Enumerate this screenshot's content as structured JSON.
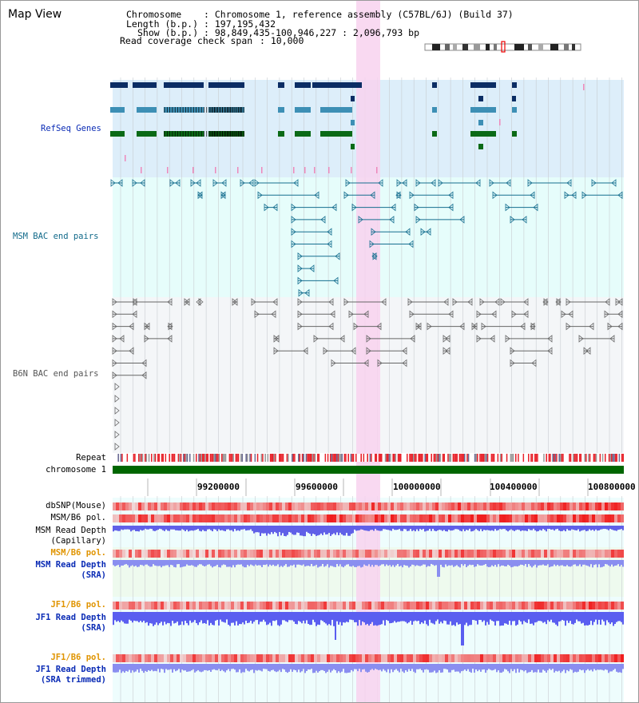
{
  "view": {
    "title": "Map View",
    "chromosome_key": "Chromosome",
    "chromosome_val": ": Chromosome 1, reference assembly (C57BL/6J) (Build 37)",
    "length_key": "Length (b.p.)",
    "length_val": ": 197,195,432",
    "show_key": "Show (b.p.)",
    "show_val": ": 98,849,435-100,946,227 : 2,096,793 bp",
    "coverage_key": "Read coverage check span",
    "coverage_val": ": 10,000"
  },
  "tracks": {
    "refseq": "RefSeq Genes",
    "msm_bac": "MSM BAC end pairs",
    "b6n_bac": "B6N BAC end pairs",
    "repeat": "Repeat",
    "chromosome": "chromosome 1",
    "dbsnp": "dbSNP(Mouse)",
    "msm_b6_pol_1": "MSM/B6 pol.",
    "msm_depth_cap_1": "MSM Read Depth",
    "msm_depth_cap_2": "(Capillary)",
    "msm_b6_pol_2": "MSM/B6 pol.",
    "msm_depth_sra_1": "MSM Read Depth",
    "msm_depth_sra_2": "(SRA)",
    "jf1_b6_pol_1": "JF1/B6 pol.",
    "jf1_depth_sra_1": "JF1 Read Depth",
    "jf1_depth_sra_2": "(SRA)",
    "jf1_b6_pol_2": "JF1/B6 pol.",
    "jf1_depth_trim_1": "JF1 Read Depth",
    "jf1_depth_trim_2": "(SRA trimmed)"
  },
  "axis": {
    "ticks": [
      "99200000",
      "99600000",
      "100000000",
      "100400000",
      "100800000"
    ]
  },
  "colors": {
    "refseq_bg": "#ddeefa",
    "msm_bac_bg": "#e6fdfb",
    "b6n_bac_bg": "#f4f6f8",
    "highlight": "#f8d2ef",
    "refseq_label": "#0a2bb5",
    "msm_bac_label": "#126a8a",
    "b6n_bac_label": "#555555",
    "pol_label": "#e09400",
    "depth_label": "#0a2bb5",
    "chromosome_bar": "#006600"
  }
}
